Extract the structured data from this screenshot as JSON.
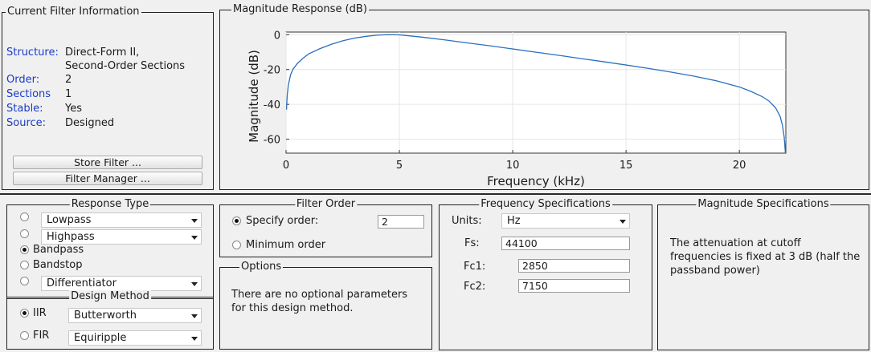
{
  "filter_info": {
    "title": "Current Filter Information",
    "rows": [
      {
        "key": "Structure:",
        "value": "Direct-Form II,"
      },
      {
        "key": "",
        "value": "Second-Order Sections"
      },
      {
        "key": "Order:",
        "value": "2"
      },
      {
        "key": "Sections",
        "value": "1"
      },
      {
        "key": "Stable:",
        "value": "Yes"
      },
      {
        "key": "Source:",
        "value": "Designed"
      }
    ],
    "store_button": "Store Filter ...",
    "manager_button": "Filter Manager ..."
  },
  "magnitude_panel": {
    "title": "Magnitude Response (dB)"
  },
  "chart_data": {
    "type": "line",
    "title": "",
    "xlabel": "Frequency (kHz)",
    "ylabel": "Magnitude (dB)",
    "xlim": [
      0,
      22.05
    ],
    "ylim": [
      -68,
      1.5
    ],
    "xticks": [
      "0",
      "5",
      "10",
      "15",
      "20"
    ],
    "yticks": [
      "0",
      "-20",
      "-40",
      "-60"
    ],
    "grid": true,
    "series": [
      {
        "color": "#2a6fbf",
        "x": [
          0.02,
          0.05,
          0.1,
          0.2,
          0.3,
          0.5,
          0.75,
          1.0,
          1.5,
          2.0,
          2.5,
          3.0,
          3.5,
          4.0,
          4.5,
          5.0,
          6.0,
          7.0,
          8.0,
          9.0,
          10.0,
          11.0,
          12.0,
          13.0,
          14.0,
          15.0,
          16.0,
          17.0,
          18.0,
          19.0,
          20.0,
          20.5,
          21.0,
          21.3,
          21.6,
          21.8,
          21.9,
          21.98,
          22.03
        ],
        "y": [
          -43,
          -35,
          -29,
          -23,
          -20,
          -16.5,
          -13.5,
          -11,
          -8,
          -5.5,
          -3.5,
          -2,
          -1,
          -0.3,
          0,
          -0.1,
          -1.4,
          -3,
          -4.7,
          -6.4,
          -8.2,
          -10,
          -11.8,
          -13.7,
          -15.5,
          -17.4,
          -19.4,
          -21.5,
          -23.8,
          -26.5,
          -30,
          -32.5,
          -35.5,
          -38,
          -42,
          -47,
          -52,
          -59,
          -68
        ]
      }
    ]
  },
  "response_type": {
    "title": "Response Type",
    "options": [
      {
        "label": "Lowpass",
        "kind": "dropdown",
        "selected": false
      },
      {
        "label": "Highpass",
        "kind": "dropdown",
        "selected": false
      },
      {
        "label": "Bandpass",
        "kind": "plain",
        "selected": true
      },
      {
        "label": "Bandstop",
        "kind": "plain",
        "selected": false
      },
      {
        "label": "Differentiator",
        "kind": "dropdown",
        "selected": false
      }
    ]
  },
  "design_method": {
    "title": "Design Method",
    "iir_label": "IIR",
    "iir_value": "Butterworth",
    "fir_label": "FIR",
    "fir_value": "Equiripple"
  },
  "filter_order": {
    "title": "Filter Order",
    "specify_label": "Specify order:",
    "specify_value": "2",
    "minimum_label": "Minimum order"
  },
  "options": {
    "title": "Options",
    "text_line1": "There are no optional parameters",
    "text_line2": "for this design method."
  },
  "freq_specs": {
    "title": "Frequency Specifications",
    "units_label": "Units:",
    "units_value": "Hz",
    "fs_label": "Fs:",
    "fs_value": "44100",
    "fc1_label": "Fc1:",
    "fc1_value": "2850",
    "fc2_label": "Fc2:",
    "fc2_value": "7150"
  },
  "mag_specs": {
    "title": "Magnitude Specifications",
    "text_line1": "The attenuation at cutoff",
    "text_line2": "frequencies is fixed at 3 dB (half the",
    "text_line3": "passband power)"
  }
}
